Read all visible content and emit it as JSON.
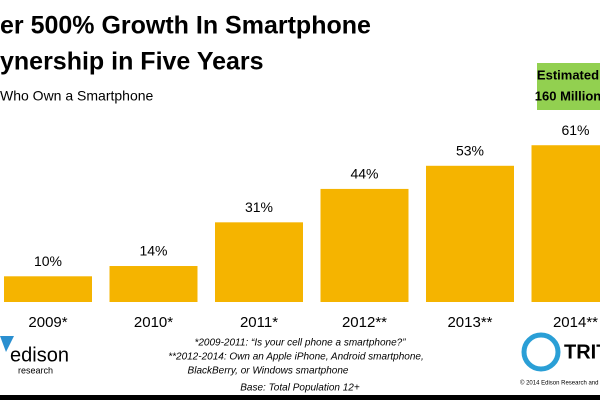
{
  "chart_data": {
    "type": "bar",
    "title": [
      "er 500% Growth In Smartphone",
      "ynership in Five Years"
    ],
    "subtitle": "Who Own a Smartphone",
    "categories": [
      "2009*",
      "2010*",
      "2011*",
      "2012**",
      "2013**",
      "2014**"
    ],
    "values": [
      10,
      14,
      31,
      44,
      53,
      61
    ],
    "value_labels": [
      "10%",
      "14%",
      "31%",
      "44%",
      "53%",
      "61%"
    ],
    "color": "#f5b400",
    "annotation": [
      "Estimated",
      "160 Million"
    ],
    "footnotes": [
      "*2009-2011:  “Is your cell phone a smartphone?”",
      "**2012-2014:  Own an Apple iPhone, Android smartphone,",
      "BlackBerry, or Windows smartphone"
    ],
    "base": "Base: Total Population 12+",
    "logos": [
      "edison",
      "research",
      "TRIT"
    ],
    "copyright": "© 2014 Edison Research and"
  }
}
